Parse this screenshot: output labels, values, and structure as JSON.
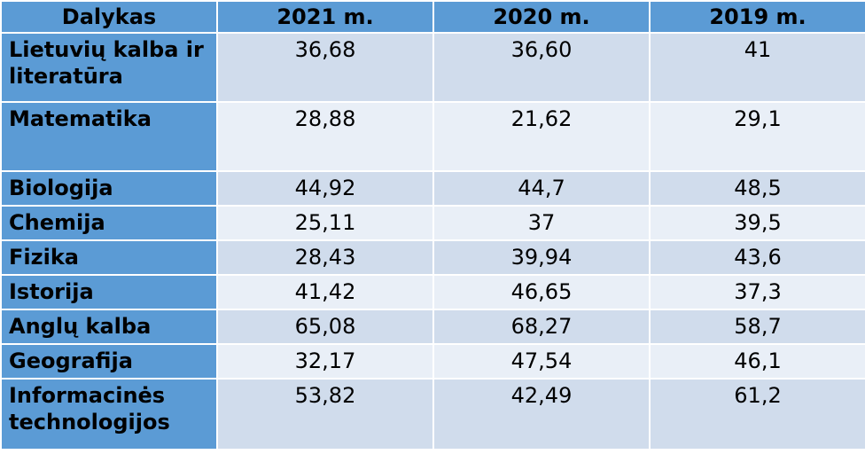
{
  "table": {
    "headers": [
      "Dalykas",
      "2021 m.",
      "2020 m.",
      "2019 m."
    ],
    "rows": [
      {
        "subject": "Lietuvių kalba ir literatūra",
        "v2021": "36,68",
        "v2020": "36,60",
        "v2019": "41"
      },
      {
        "subject": "Matematika",
        "v2021": "28,88",
        "v2020": "21,62",
        "v2019": "29,1"
      },
      {
        "subject": "Biologija",
        "v2021": "44,92",
        "v2020": "44,7",
        "v2019": "48,5"
      },
      {
        "subject": "Chemija",
        "v2021": "25,11",
        "v2020": "37",
        "v2019": "39,5"
      },
      {
        "subject": "Fizika",
        "v2021": "28,43",
        "v2020": "39,94",
        "v2019": "43,6"
      },
      {
        "subject": "Istorija",
        "v2021": "41,42",
        "v2020": "46,65",
        "v2019": "37,3"
      },
      {
        "subject": "Anglų kalba",
        "v2021": "65,08",
        "v2020": "68,27",
        "v2019": "58,7"
      },
      {
        "subject": "Geografija",
        "v2021": "32,17",
        "v2020": "47,54",
        "v2019": "46,1"
      },
      {
        "subject": "Informacinės technologijos",
        "v2021": "53,82",
        "v2020": "42,49",
        "v2019": "61,2"
      }
    ]
  },
  "colors": {
    "header_bg": "#5b9bd5",
    "row_dark": "#d0dcec",
    "row_light": "#e9eff7"
  }
}
